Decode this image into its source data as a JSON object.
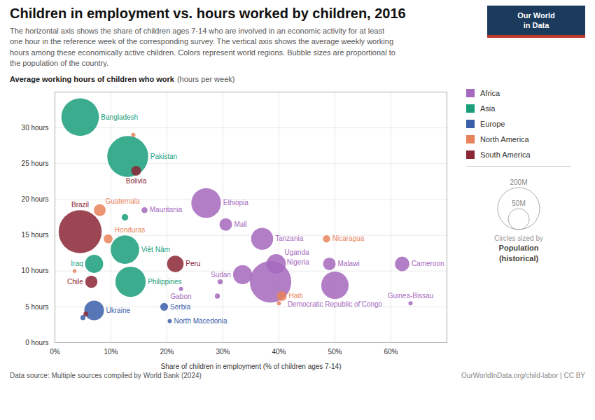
{
  "chart_data": {
    "type": "scatter",
    "title": "Children in employment vs. hours worked by children, 2016",
    "subtitle": "The horizontal axis shows the share of children ages 7-14 who are involved in an economic activity for at least\none hour in the reference week of the corresponding survey. The vertical axis shows the average weekly working\nhours among these economically active children. Colors represent world regions. Bubble sizes are proportional to\nthe population of the country.",
    "ylabel": "Average working hours of children who work",
    "ylabel_note": "(hours per week)",
    "xlabel": "Share of children in employment (% of children ages 7-14)",
    "source": "Data source: Multiple sources compiled by World Bank (2024)",
    "url": "OurWorldInData.org/child-labor | CC BY",
    "logo": [
      "Our World",
      "in Data"
    ],
    "series": [
      {
        "name": "Africa",
        "color": "#A569BD"
      },
      {
        "name": "Asia",
        "color": "#1A9E7A"
      },
      {
        "name": "Europe",
        "color": "#3A5EA8"
      },
      {
        "name": "North America",
        "color": "#E8825A"
      },
      {
        "name": "South America",
        "color": "#8B2635"
      }
    ],
    "points": [
      {
        "label": "Bangladesh",
        "x": 4.5,
        "y": 31.5,
        "size": 160,
        "region": "Asia"
      },
      {
        "label": "Pakistan",
        "x": 13.0,
        "y": 26.0,
        "size": 190,
        "region": "Asia"
      },
      {
        "label": "Bolivia",
        "x": 14.5,
        "y": 24.0,
        "size": 11,
        "region": "South America"
      },
      {
        "label": "Brazil",
        "x": 4.5,
        "y": 15.5,
        "size": 210,
        "region": "South America"
      },
      {
        "label": "Ethiopia",
        "x": 27.0,
        "y": 19.5,
        "size": 100,
        "region": "Africa"
      },
      {
        "label": "Guatemala",
        "x": 8.0,
        "y": 18.5,
        "size": 16,
        "region": "North America"
      },
      {
        "label": "Mauritania",
        "x": 16.0,
        "y": 18.5,
        "size": 4,
        "region": "Africa"
      },
      {
        "label": "Mali",
        "x": 30.5,
        "y": 16.5,
        "size": 18,
        "region": "Africa"
      },
      {
        "label": "Tanzania",
        "x": 37.0,
        "y": 14.5,
        "size": 55,
        "region": "Africa"
      },
      {
        "label": "Honduras",
        "x": 9.5,
        "y": 14.5,
        "size": 9,
        "region": "North America"
      },
      {
        "label": "Nicaragua",
        "x": 48.5,
        "y": 14.5,
        "size": 6,
        "region": "North America"
      },
      {
        "label": "Việt Nâm",
        "x": 12.5,
        "y": 13.0,
        "size": 92,
        "region": "Asia"
      },
      {
        "label": "Iraq",
        "x": 7.0,
        "y": 11.0,
        "size": 37,
        "region": "Asia"
      },
      {
        "label": "Peru",
        "x": 21.5,
        "y": 11.0,
        "size": 31,
        "region": "South America"
      },
      {
        "label": "Uganda",
        "x": 39.5,
        "y": 11.0,
        "size": 43,
        "region": "Africa"
      },
      {
        "label": "Malawi",
        "x": 49.0,
        "y": 11.0,
        "size": 18,
        "region": "Africa"
      },
      {
        "label": "Cameroon",
        "x": 62.0,
        "y": 11.0,
        "size": 24,
        "region": "Africa"
      },
      {
        "label": "Philippines",
        "x": 13.5,
        "y": 8.5,
        "size": 104,
        "region": "Asia"
      },
      {
        "label": "Sudan",
        "x": 33.5,
        "y": 9.5,
        "size": 41,
        "region": "Africa"
      },
      {
        "label": "Nigeria",
        "x": 38.5,
        "y": 8.5,
        "size": 195,
        "region": "Africa"
      },
      {
        "label": "Democratic Republic of’Congo",
        "x": 50.0,
        "y": 8.0,
        "size": 85,
        "region": "Africa"
      },
      {
        "label": "Chile",
        "x": 6.5,
        "y": 8.5,
        "size": 17,
        "region": "South America"
      },
      {
        "label": "Gabon",
        "x": 22.5,
        "y": 7.5,
        "size": 2,
        "region": "Africa"
      },
      {
        "label": "Haiti",
        "x": 40.5,
        "y": 6.5,
        "size": 11,
        "region": "North America"
      },
      {
        "label": "Guinea-Bissau",
        "x": 63.5,
        "y": 5.5,
        "size": 2,
        "region": "Africa"
      },
      {
        "label": "Ukraine",
        "x": 7.0,
        "y": 4.5,
        "size": 44,
        "region": "Europe"
      },
      {
        "label": "Serbia",
        "x": 19.5,
        "y": 5.0,
        "size": 7,
        "region": "Europe"
      },
      {
        "label": "North Macedonia",
        "x": 20.5,
        "y": 3.0,
        "size": 2,
        "region": "Europe"
      },
      {
        "label": null,
        "x": 3.5,
        "y": 10.0,
        "size": 1.5,
        "region": "North America"
      },
      {
        "label": null,
        "x": 5.0,
        "y": 3.5,
        "size": 3,
        "region": "Europe"
      },
      {
        "label": null,
        "x": 5.5,
        "y": 4.0,
        "size": 2.5,
        "region": "South America"
      },
      {
        "label": null,
        "x": 12.5,
        "y": 17.5,
        "size": 5,
        "region": "Asia"
      },
      {
        "label": null,
        "x": 29.5,
        "y": 8.5,
        "size": 3,
        "region": "Africa"
      },
      {
        "label": null,
        "x": 29.0,
        "y": 6.5,
        "size": 3,
        "region": "Africa"
      },
      {
        "label": null,
        "x": 40.0,
        "y": 5.5,
        "size": 2,
        "region": "North America"
      },
      {
        "label": null,
        "x": 14.0,
        "y": 29.0,
        "size": 2,
        "region": "North America"
      }
    ],
    "xlim": [
      0,
      70
    ],
    "ylim": [
      0,
      35
    ],
    "xticks": [
      {
        "value": 0,
        "label": "0%"
      },
      {
        "value": 10,
        "label": "10%"
      },
      {
        "value": 20,
        "label": "20%"
      },
      {
        "value": 30,
        "label": "30%"
      },
      {
        "value": 40,
        "label": "40%"
      },
      {
        "value": 50,
        "label": "50%"
      },
      {
        "value": 60,
        "label": "60%"
      }
    ],
    "yticks": [
      {
        "value": 0,
        "label": "0 hours"
      },
      {
        "value": 5,
        "label": "5 hours"
      },
      {
        "value": 10,
        "label": "10 hours"
      },
      {
        "value": 15,
        "label": "15 hours"
      },
      {
        "value": 20,
        "label": "20 hours"
      },
      {
        "value": 25,
        "label": "25 hours"
      },
      {
        "value": 30,
        "label": "30 hours"
      }
    ],
    "grid": true,
    "legend": "right",
    "size_legend": {
      "values": [
        200,
        50
      ],
      "labels": [
        "200M",
        "50M"
      ]
    },
    "size_legend_title": [
      "Circles sized by",
      "Population",
      "(historical)"
    ]
  }
}
